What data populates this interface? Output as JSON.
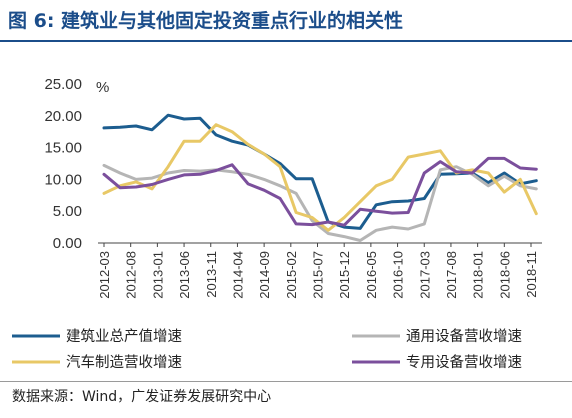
{
  "header": {
    "title": "图 6:  建筑业与其他固定投资重点行业的相关性"
  },
  "footer": {
    "source": "数据来源：Wind，广发证券发展研究中心"
  },
  "chart_data": {
    "type": "line",
    "title": "",
    "ylabel": "%",
    "xlabel": "",
    "ylim": [
      0,
      25
    ],
    "yticks": [
      "0.00",
      "5.00",
      "10.00",
      "15.00",
      "20.00",
      "25.00"
    ],
    "x_tick_labels": [
      "2012-03",
      "2012-08",
      "2013-01",
      "2013-06",
      "2013-11",
      "2014-04",
      "2014-09",
      "2015-02",
      "2015-07",
      "2015-12",
      "2016-05",
      "2016-10",
      "2017-03",
      "2017-08",
      "2018-01",
      "2018-06",
      "2018-11"
    ],
    "x": [
      "2012-03",
      "2012-06",
      "2012-09",
      "2012-12",
      "2013-03",
      "2013-06",
      "2013-09",
      "2013-12",
      "2014-03",
      "2014-06",
      "2014-09",
      "2014-12",
      "2015-03",
      "2015-06",
      "2015-09",
      "2015-12",
      "2016-03",
      "2016-06",
      "2016-09",
      "2016-12",
      "2017-03",
      "2017-06",
      "2017-09",
      "2017-12",
      "2018-03",
      "2018-06",
      "2018-09",
      "2018-12"
    ],
    "grid": false,
    "legend_position": "bottom",
    "series": [
      {
        "name": "建筑业总产值增速",
        "color": "#1c5d8f",
        "values": [
          18.1,
          18.2,
          18.4,
          17.8,
          20.1,
          19.5,
          19.6,
          17.0,
          16.0,
          15.4,
          14.0,
          12.5,
          10.1,
          10.1,
          3.3,
          2.5,
          2.3,
          6.0,
          6.5,
          6.6,
          7.0,
          10.8,
          10.9,
          11.0,
          9.5,
          11.0,
          9.3,
          9.8
        ]
      },
      {
        "name": "通用设备营收增速",
        "color": "#b5b5b5",
        "values": [
          12.2,
          11.0,
          10.0,
          10.2,
          11.0,
          11.4,
          11.3,
          11.5,
          11.2,
          10.8,
          10.0,
          9.0,
          7.8,
          3.5,
          1.5,
          1.0,
          0.4,
          2.0,
          2.5,
          2.2,
          3.0,
          11.5,
          12.0,
          10.8,
          9.0,
          10.5,
          9.0,
          8.5
        ]
      },
      {
        "name": "汽车制造营收增速",
        "color": "#e8c866",
        "values": [
          7.8,
          9.0,
          9.6,
          8.5,
          12.0,
          16.0,
          16.0,
          18.6,
          17.5,
          15.5,
          14.0,
          12.0,
          4.8,
          4.0,
          2.0,
          4.0,
          6.5,
          9.0,
          10.0,
          13.5,
          14.0,
          14.5,
          11.0,
          11.5,
          11.0,
          8.0,
          10.0,
          4.6
        ]
      },
      {
        "name": "专用设备营收增速",
        "color": "#7b4f9c",
        "values": [
          10.8,
          8.7,
          8.8,
          9.2,
          10.0,
          10.7,
          10.8,
          11.4,
          12.3,
          9.3,
          8.3,
          7.0,
          3.0,
          2.9,
          3.3,
          2.8,
          5.3,
          5.0,
          4.7,
          4.8,
          11.0,
          12.8,
          11.2,
          11.0,
          13.3,
          13.3,
          11.8,
          11.6
        ]
      }
    ]
  }
}
